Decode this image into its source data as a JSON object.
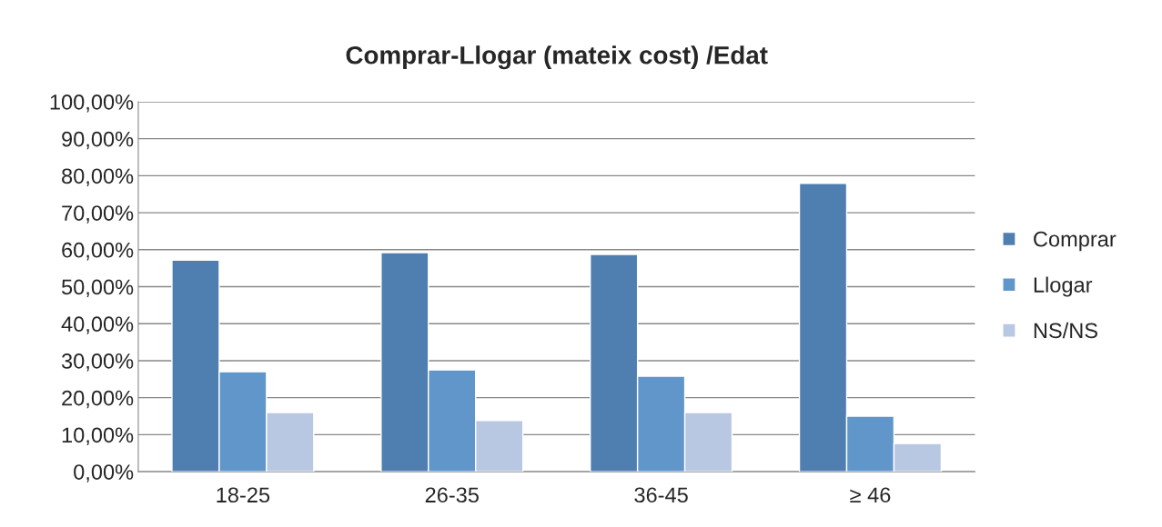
{
  "chart_data": {
    "type": "bar",
    "title": "Comprar-Llogar (mateix cost) /Edat",
    "categories": [
      "18-25",
      "26-35",
      "36-45",
      "≥ 46"
    ],
    "series": [
      {
        "name": "Comprar",
        "color": "#4f7eb0",
        "values": [
          57.2,
          59.2,
          58.7,
          77.9
        ]
      },
      {
        "name": "Llogar",
        "color": "#6196cb",
        "values": [
          27.0,
          27.5,
          25.8,
          15.0
        ]
      },
      {
        "name": "NS/NS",
        "color": "#b8c7e2",
        "values": [
          16.0,
          13.8,
          16.0,
          7.6
        ]
      }
    ],
    "ylim": [
      0,
      100
    ],
    "yticks": [
      {
        "value": 0,
        "label": "0,00%"
      },
      {
        "value": 10,
        "label": "10,00%"
      },
      {
        "value": 20,
        "label": "20,00%"
      },
      {
        "value": 30,
        "label": "30,00%"
      },
      {
        "value": 40,
        "label": "40,00%"
      },
      {
        "value": 50,
        "label": "50,00%"
      },
      {
        "value": 60,
        "label": "60,00%"
      },
      {
        "value": 70,
        "label": "70,00%"
      },
      {
        "value": 80,
        "label": "80,00%"
      },
      {
        "value": 90,
        "label": "90,00%"
      },
      {
        "value": 100,
        "label": "100,00%"
      }
    ],
    "grid": "y",
    "legend": "right"
  }
}
